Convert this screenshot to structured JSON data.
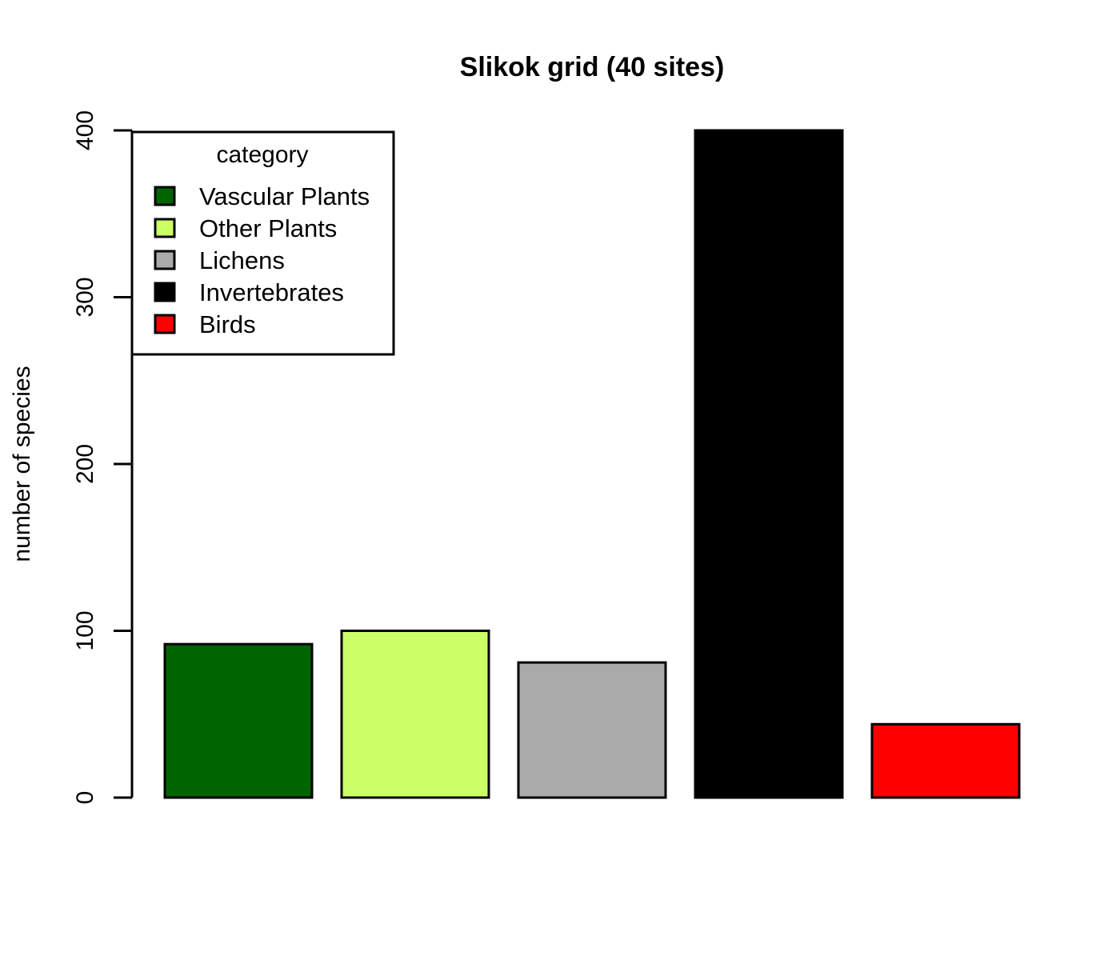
{
  "chart_data": {
    "type": "bar",
    "title": "Slikok grid (40 sites)",
    "xlabel": "",
    "ylabel": "number of species",
    "ylim": [
      0,
      400
    ],
    "yticks": [
      0,
      100,
      200,
      300,
      400
    ],
    "categories": [
      "Vascular Plants",
      "Other Plants",
      "Lichens",
      "Invertebrates",
      "Birds"
    ],
    "values": [
      92,
      100,
      81,
      400,
      44
    ],
    "colors": [
      "#006400",
      "#ccff66",
      "#aaaaaa",
      "#000000",
      "#ff0000"
    ],
    "grid": false,
    "legend": {
      "title": "category",
      "placement": "top-left",
      "entries": [
        "Vascular Plants",
        "Other Plants",
        "Lichens",
        "Invertebrates",
        "Birds"
      ]
    }
  }
}
